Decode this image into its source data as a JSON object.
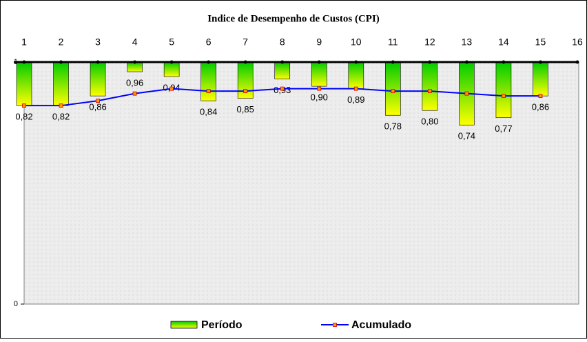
{
  "chart_data": {
    "type": "bar_line",
    "title": "Indice de Desempenho de Custos (CPI)",
    "categories": [
      "1",
      "2",
      "3",
      "4",
      "5",
      "6",
      "7",
      "8",
      "9",
      "10",
      "11",
      "12",
      "13",
      "14",
      "15",
      "16"
    ],
    "series": [
      {
        "name": "Período",
        "type": "bar",
        "color": "#ffff00",
        "color2": "#00cc00",
        "values": [
          0.82,
          0.82,
          0.86,
          0.96,
          0.94,
          0.84,
          0.85,
          0.93,
          0.9,
          0.89,
          0.78,
          0.8,
          0.74,
          0.77,
          0.86,
          null
        ],
        "value_labels": [
          "0,82",
          "0,82",
          "0,86",
          "0,96",
          "0,94",
          "0,84",
          "0,85",
          "0,93",
          "0,90",
          "0,89",
          "0,78",
          "0,80",
          "0,74",
          "0,77",
          "0,86",
          null
        ]
      },
      {
        "name": "Acumulado",
        "type": "line",
        "color": "#0000ff",
        "marker_color": "#ff9900",
        "values": [
          0.82,
          0.82,
          0.84,
          0.87,
          0.89,
          0.88,
          0.88,
          0.89,
          0.89,
          0.89,
          0.88,
          0.88,
          0.87,
          0.86,
          0.86,
          null
        ]
      }
    ],
    "ylim": [
      0,
      1
    ],
    "yticks": [
      0,
      1
    ]
  }
}
